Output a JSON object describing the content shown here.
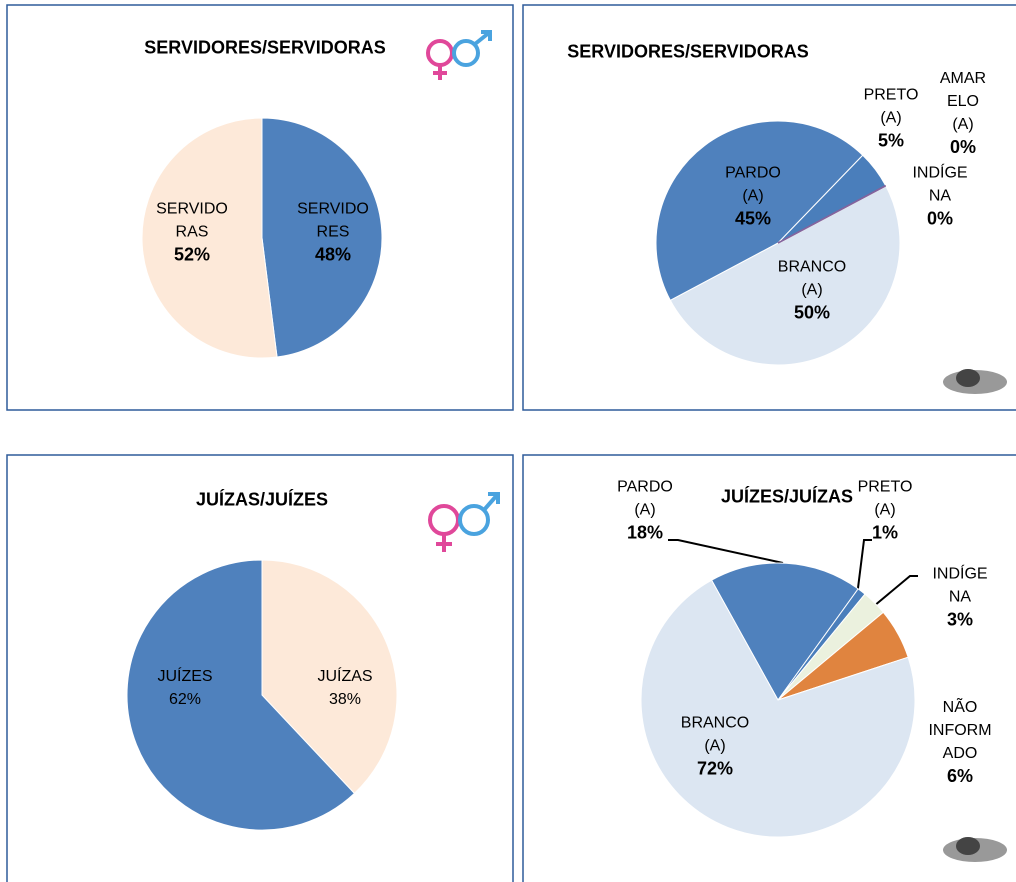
{
  "chart_data": [
    {
      "type": "pie",
      "title": "SERVIDORES/SERVIDORAS",
      "categories": [
        "SERVIDORES",
        "SERVIDORAS"
      ],
      "values": [
        48,
        52
      ],
      "value_labels": [
        "48%",
        "52%"
      ],
      "colors": [
        "#4f81bd",
        "#fde9d9"
      ]
    },
    {
      "type": "pie",
      "title": "SERVIDORES/SERVIDORAS",
      "categories": [
        "BRANCO (A)",
        "PARDO (A)",
        "PRETO (A)",
        "AMARELO (A)",
        "INDÍGENA"
      ],
      "values": [
        50,
        45,
        5,
        0,
        0
      ],
      "value_labels": [
        "50%",
        "45%",
        "5%",
        "0%",
        "0%"
      ],
      "colors": [
        "#dce6f2",
        "#4f81bd",
        "#4a7ebb",
        "#c0504d",
        "#8064a2"
      ]
    },
    {
      "type": "pie",
      "title": "JUÍZAS/JUÍZES",
      "categories": [
        "JUÍZAS",
        "JUÍZES"
      ],
      "values": [
        38,
        62
      ],
      "value_labels": [
        "38%",
        "62%"
      ],
      "colors": [
        "#fde9d9",
        "#4f81bd"
      ]
    },
    {
      "type": "pie",
      "title": "JUÍZES/JUÍZAS",
      "categories": [
        "PARDO (A)",
        "PRETO (A)",
        "INDÍGENA",
        "NÃO INFORMADO",
        "BRANCO (A)"
      ],
      "values": [
        18,
        1,
        3,
        6,
        72
      ],
      "value_labels": [
        "18%",
        "1%",
        "3%",
        "6%",
        "72%"
      ],
      "colors": [
        "#4f81bd",
        "#4a7ebb",
        "#ebf1de",
        "#e0843f",
        "#dce6f2"
      ]
    }
  ]
}
